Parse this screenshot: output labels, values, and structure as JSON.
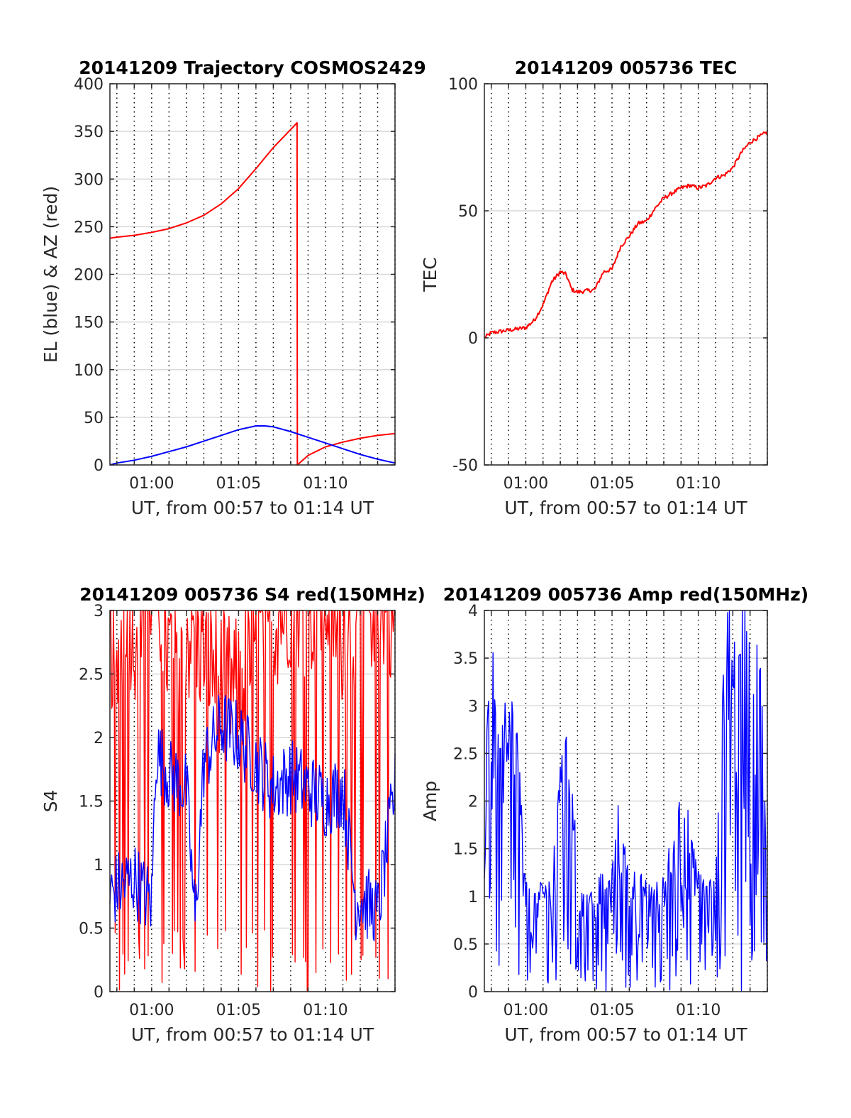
{
  "chart_data": [
    {
      "type": "line",
      "title": "20141209 Trajectory COSMOS2429",
      "xlabel": "UT, from 00:57 to 01:14 UT",
      "ylabel": "EL (blue) & AZ (red)",
      "xlim": [
        "00:57:36",
        "01:14:00"
      ],
      "ylim": [
        0,
        400
      ],
      "xticks": [
        "01:00",
        "01:05",
        "01:10"
      ],
      "yticks": [
        "0",
        "50",
        "100",
        "150",
        "200",
        "250",
        "300",
        "350",
        "400"
      ],
      "grid": true,
      "series": [
        {
          "color": "#ff0000",
          "x": [
            "00:57:36",
            "00:58:00",
            "00:59:00",
            "01:00:00",
            "01:01:00",
            "01:02:00",
            "01:03:00",
            "01:04:00",
            "01:05:00",
            "01:06:00",
            "01:07:00",
            "01:08:00",
            "01:08:22",
            "01:08:23",
            "01:09:00",
            "01:10:00",
            "01:11:00",
            "01:12:00",
            "01:13:00",
            "01:14:00"
          ],
          "y": [
            238,
            239,
            241,
            244,
            248,
            254,
            262,
            274,
            290,
            311,
            333,
            352,
            359,
            0,
            10,
            19,
            24,
            28,
            31,
            33
          ]
        },
        {
          "color": "#0000ff",
          "x": [
            "00:57:36",
            "00:58:00",
            "00:59:00",
            "01:00:00",
            "01:01:00",
            "01:02:00",
            "01:03:00",
            "01:04:00",
            "01:05:00",
            "01:06:00",
            "01:06:30",
            "01:07:00",
            "01:08:00",
            "01:09:00",
            "01:10:00",
            "01:11:00",
            "01:12:00",
            "01:13:00",
            "01:14:00"
          ],
          "y": [
            0,
            2,
            5,
            9,
            14,
            19,
            25,
            31,
            37,
            41,
            41,
            40,
            35,
            29,
            23,
            17,
            11,
            6,
            2
          ]
        }
      ]
    },
    {
      "type": "line",
      "title": "20141209 005736 TEC",
      "xlabel": "UT, from 00:57 to 01:14 UT",
      "ylabel": "TEC",
      "xlim": [
        "00:57:36",
        "01:14:00"
      ],
      "ylim": [
        -50,
        100
      ],
      "xticks": [
        "01:00",
        "01:05",
        "01:10"
      ],
      "yticks": [
        "-50",
        "0",
        "50",
        "100"
      ],
      "grid": true,
      "series": [
        {
          "color": "#ff0000",
          "x": [
            "00:57:36",
            "00:58:00",
            "00:59:00",
            "01:00:00",
            "01:00:30",
            "01:01:00",
            "01:01:30",
            "01:02:00",
            "01:02:20",
            "01:02:40",
            "01:03:00",
            "01:04:00",
            "01:04:30",
            "01:05:00",
            "01:05:30",
            "01:06:00",
            "01:06:30",
            "01:07:00",
            "01:07:30",
            "01:08:00",
            "01:08:30",
            "01:09:00",
            "01:09:30",
            "01:10:00",
            "01:10:30",
            "01:11:00",
            "01:11:30",
            "01:12:00",
            "01:12:30",
            "01:13:00",
            "01:13:30",
            "01:14:00"
          ],
          "y": [
            0,
            2,
            3,
            4,
            7,
            13,
            22,
            26,
            25,
            19,
            18,
            19,
            26,
            27,
            36,
            40,
            45,
            46,
            51,
            55,
            57,
            59,
            60,
            59,
            60,
            63,
            64,
            67,
            73,
            77,
            79,
            81
          ]
        }
      ]
    },
    {
      "type": "line",
      "title": "20141209 005736 S4 red(150MHz)",
      "xlabel": "UT, from 00:57 to 01:14 UT",
      "ylabel": "S4",
      "xlim": [
        "00:57:36",
        "01:14:00"
      ],
      "ylim": [
        0,
        3
      ],
      "xticks": [
        "01:00",
        "01:05",
        "01:10"
      ],
      "yticks": [
        "0",
        "0.5",
        "1",
        "1.5",
        "2",
        "2.5",
        "3"
      ],
      "grid": true,
      "series": [
        {
          "color": "#ff0000",
          "x": [
            "00:57:36",
            "00:58:00",
            "00:58:30",
            "00:59:00",
            "00:59:30",
            "01:00:00",
            "01:00:30",
            "01:01:00",
            "01:02:00",
            "01:03:00",
            "01:04:00",
            "01:05:00",
            "01:06:00",
            "01:07:00",
            "01:08:00",
            "01:09:00",
            "01:10:00",
            "01:11:00",
            "01:12:00",
            "01:13:00",
            "01:14:00"
          ],
          "y": [
            2.7,
            2.1,
            2.9,
            2.6,
            3.0,
            3.0,
            2.8,
            2.4,
            2.6,
            2.5,
            2.2,
            2.1,
            2.5,
            2.7,
            2.9,
            2.8,
            2.9,
            2.6,
            2.8,
            2.9,
            2.8
          ]
        },
        {
          "color": "#0000ff",
          "x": [
            "00:57:36",
            "00:58:00",
            "00:58:30",
            "00:59:00",
            "00:59:30",
            "01:00:00",
            "01:00:15",
            "01:01:00",
            "01:02:00",
            "01:02:30",
            "01:03:00",
            "01:04:00",
            "01:05:00",
            "01:06:00",
            "01:07:00",
            "01:08:00",
            "01:09:00",
            "01:10:00",
            "01:11:00",
            "01:11:45",
            "01:12:00",
            "01:13:00",
            "01:14:00"
          ],
          "y": [
            0.75,
            0.82,
            0.85,
            0.9,
            0.78,
            0.7,
            1.9,
            1.7,
            1.6,
            0.55,
            1.8,
            2.1,
            2.0,
            1.8,
            1.6,
            1.7,
            1.6,
            1.5,
            1.6,
            0.7,
            0.75,
            0.6,
            1.6
          ]
        }
      ]
    },
    {
      "type": "line",
      "title": "20141209 005736 Amp red(150MHz)",
      "xlabel": "UT, from 00:57 to 01:14 UT",
      "ylabel": "Amp",
      "xlim": [
        "00:57:36",
        "01:14:00"
      ],
      "ylim": [
        0,
        4
      ],
      "xticks": [
        "01:00",
        "01:05",
        "01:10"
      ],
      "yticks": [
        "0",
        "0.5",
        "1",
        "1.5",
        "2",
        "2.5",
        "3",
        "3.5",
        "4"
      ],
      "grid": true,
      "series": [
        {
          "color": "#0000ff",
          "x": [
            "00:57:36",
            "00:58:00",
            "00:58:30",
            "00:59:00",
            "00:59:30",
            "01:00:00",
            "01:00:30",
            "01:01:00",
            "01:01:30",
            "01:02:00",
            "01:02:30",
            "01:03:00",
            "01:04:00",
            "01:05:00",
            "01:05:30",
            "01:06:00",
            "01:07:00",
            "01:08:00",
            "01:09:00",
            "01:10:00",
            "01:11:00",
            "01:11:45",
            "01:12:00",
            "01:12:30",
            "01:13:00",
            "01:13:30",
            "01:14:00"
          ],
          "y": [
            2.6,
            2.7,
            2.5,
            2.4,
            2.2,
            0.9,
            0.8,
            0.9,
            0.9,
            2.1,
            2.5,
            0.9,
            0.9,
            0.95,
            1.7,
            1.0,
            0.9,
            0.9,
            1.75,
            0.95,
            0.9,
            3.7,
            2.8,
            3.4,
            2.9,
            3.2,
            0.8
          ]
        }
      ]
    }
  ]
}
